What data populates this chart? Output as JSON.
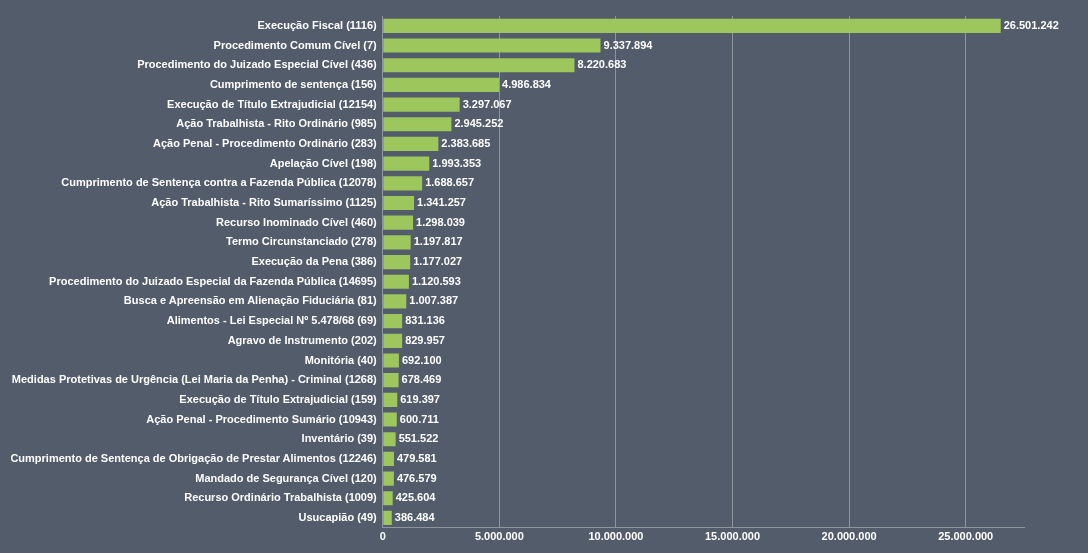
{
  "chart_data": {
    "type": "bar",
    "orientation": "horizontal",
    "categories": [
      "Execução Fiscal (1116)",
      "Procedimento Comum Cível (7)",
      "Procedimento do Juizado Especial Cível (436)",
      "Cumprimento de sentença (156)",
      "Execução de Título Extrajudicial (12154)",
      "Ação Trabalhista - Rito Ordinário (985)",
      "Ação Penal - Procedimento Ordinário (283)",
      "Apelação Cível (198)",
      "Cumprimento de Sentença contra a Fazenda Pública (12078)",
      "Ação Trabalhista - Rito Sumaríssimo (1125)",
      "Recurso Inominado Cível (460)",
      "Termo Circunstanciado (278)",
      "Execução da Pena (386)",
      "Procedimento do Juizado Especial da Fazenda Pública (14695)",
      "Busca e Apreensão em Alienação Fiduciária (81)",
      "Alimentos - Lei Especial Nº 5.478/68 (69)",
      "Agravo de Instrumento (202)",
      "Monitória (40)",
      "Medidas Protetivas de Urgência (Lei Maria da Penha) - Criminal (1268)",
      "Execução de Título Extrajudicial (159)",
      "Ação Penal - Procedimento Sumário (10943)",
      "Inventário (39)",
      "Cumprimento de Sentença de Obrigação de Prestar Alimentos (12246)",
      "Mandado de Segurança Cível (120)",
      "Recurso Ordinário Trabalhista (1009)",
      "Usucapião (49)"
    ],
    "values": [
      26501242,
      9337894,
      8220683,
      4986834,
      3297067,
      2945252,
      2383685,
      1993353,
      1688657,
      1341257,
      1298039,
      1197817,
      1177027,
      1120593,
      1007387,
      831136,
      829957,
      692100,
      678469,
      619397,
      600711,
      551522,
      479581,
      476579,
      425604,
      386484
    ],
    "value_labels": [
      "26.501.242",
      "9.337.894",
      "8.220.683",
      "4.986.834",
      "3.297.067",
      "2.945.252",
      "2.383.685",
      "1.993.353",
      "1.688.657",
      "1.341.257",
      "1.298.039",
      "1.197.817",
      "1.177.027",
      "1.120.593",
      "1.007.387",
      "831.136",
      "829.957",
      "692.100",
      "678.469",
      "619.397",
      "600.711",
      "551.522",
      "479.581",
      "476.579",
      "425.604",
      "386.484"
    ],
    "color": "#9dc65c",
    "xlim": [
      0,
      27500000
    ],
    "xticks": [
      {
        "value": 0,
        "label": "0"
      },
      {
        "value": 5000000,
        "label": "5.000.000"
      },
      {
        "value": 10000000,
        "label": "10.000.000"
      },
      {
        "value": 15000000,
        "label": "15.000.000"
      },
      {
        "value": 20000000,
        "label": "20.000.000"
      },
      {
        "value": 25000000,
        "label": "25.000.000"
      }
    ],
    "grid": "x"
  }
}
